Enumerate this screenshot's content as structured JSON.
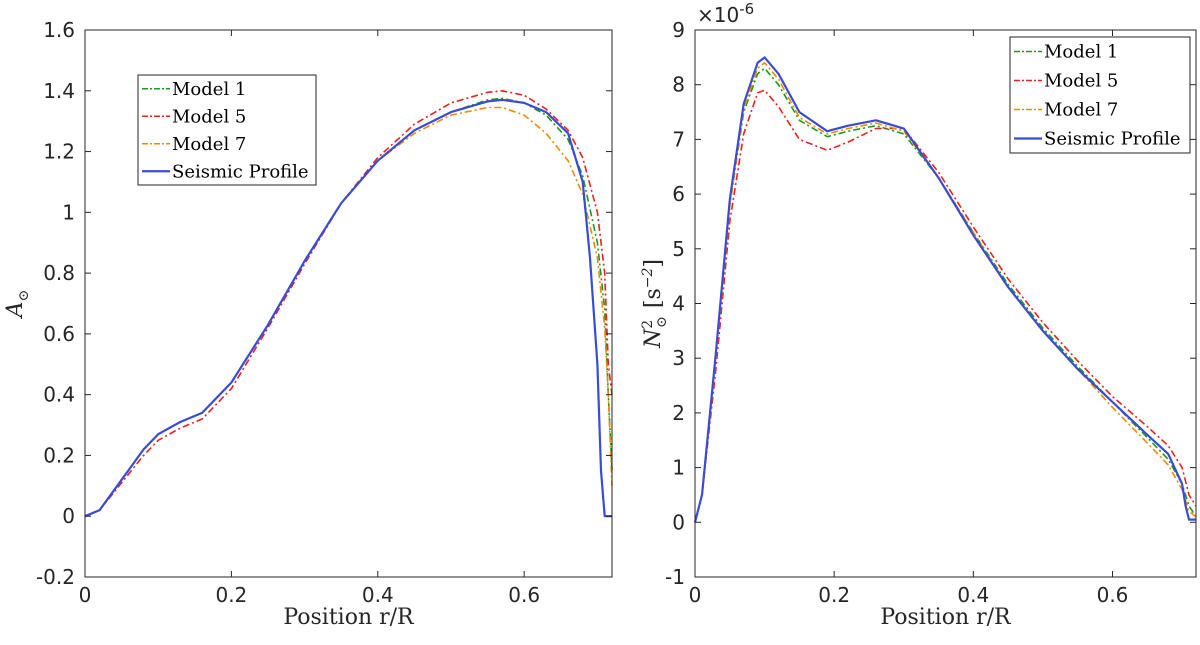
{
  "colors": {
    "model_1": "#1a9a1a",
    "model_5": "#e8231e",
    "model_7": "#f28a00",
    "seismic": "#3a4bd6",
    "axis": "#262626"
  },
  "chart_data": [
    {
      "type": "line",
      "xlabel": "Position r/R",
      "ylabel": "A",
      "ylabel_sub": "⊙",
      "xlim": [
        0,
        0.72
      ],
      "ylim": [
        -0.2,
        1.6
      ],
      "xticks": [
        0,
        0.2,
        0.4,
        0.6
      ],
      "xtick_labels": [
        "0",
        "0.2",
        "0.4",
        "0.6"
      ],
      "yticks": [
        -0.2,
        0,
        0.2,
        0.4,
        0.6,
        0.8,
        1,
        1.2,
        1.4,
        1.6
      ],
      "ytick_labels": [
        "-0.2",
        "0",
        "0.2",
        "0.4",
        "0.6",
        "0.8",
        "1",
        "1.2",
        "1.4",
        "1.6"
      ],
      "grid": false,
      "legend_position": "upper-left",
      "series": [
        {
          "name": "Model 1",
          "style": "dashdot",
          "x": [
            0,
            0.02,
            0.05,
            0.08,
            0.1,
            0.13,
            0.16,
            0.2,
            0.25,
            0.3,
            0.35,
            0.4,
            0.45,
            0.5,
            0.55,
            0.57,
            0.6,
            0.63,
            0.66,
            0.68,
            0.7,
            0.71,
            0.715,
            0.72
          ],
          "y": [
            0,
            0.02,
            0.12,
            0.22,
            0.27,
            0.31,
            0.34,
            0.44,
            0.63,
            0.84,
            1.03,
            1.17,
            1.27,
            1.33,
            1.37,
            1.375,
            1.36,
            1.32,
            1.24,
            1.12,
            0.9,
            0.68,
            0.4,
            0.15
          ]
        },
        {
          "name": "Model 5",
          "style": "dashdot",
          "x": [
            0,
            0.02,
            0.05,
            0.08,
            0.1,
            0.13,
            0.16,
            0.2,
            0.25,
            0.3,
            0.35,
            0.4,
            0.45,
            0.5,
            0.55,
            0.57,
            0.6,
            0.63,
            0.66,
            0.68,
            0.7,
            0.71,
            0.715,
            0.72
          ],
          "y": [
            0,
            0.02,
            0.11,
            0.2,
            0.25,
            0.29,
            0.32,
            0.42,
            0.62,
            0.83,
            1.03,
            1.18,
            1.29,
            1.36,
            1.395,
            1.4,
            1.385,
            1.34,
            1.27,
            1.18,
            1.0,
            0.8,
            0.5,
            0.4
          ]
        },
        {
          "name": "Model 7",
          "style": "dashdot",
          "x": [
            0,
            0.02,
            0.05,
            0.08,
            0.1,
            0.13,
            0.16,
            0.2,
            0.25,
            0.3,
            0.35,
            0.4,
            0.45,
            0.5,
            0.55,
            0.57,
            0.6,
            0.63,
            0.66,
            0.68,
            0.7,
            0.71,
            0.715,
            0.72
          ],
          "y": [
            0,
            0.02,
            0.12,
            0.22,
            0.27,
            0.31,
            0.34,
            0.44,
            0.63,
            0.84,
            1.03,
            1.17,
            1.26,
            1.32,
            1.345,
            1.345,
            1.32,
            1.26,
            1.17,
            1.06,
            0.85,
            0.62,
            0.4,
            0.1
          ]
        },
        {
          "name": "Seismic Profile",
          "style": "solid",
          "x": [
            0,
            0.02,
            0.05,
            0.08,
            0.1,
            0.13,
            0.16,
            0.2,
            0.25,
            0.3,
            0.35,
            0.4,
            0.45,
            0.5,
            0.55,
            0.57,
            0.6,
            0.63,
            0.66,
            0.68,
            0.69,
            0.7,
            0.705,
            0.71,
            0.715,
            0.72
          ],
          "y": [
            0,
            0.02,
            0.12,
            0.22,
            0.27,
            0.31,
            0.34,
            0.44,
            0.63,
            0.84,
            1.03,
            1.17,
            1.27,
            1.33,
            1.365,
            1.37,
            1.36,
            1.33,
            1.26,
            1.1,
            0.85,
            0.5,
            0.15,
            0.0,
            0.0,
            0.0
          ]
        }
      ]
    },
    {
      "type": "line",
      "xlabel": "Position r/R",
      "ylabel": "N",
      "ylabel_sub": "⊙",
      "ylabel_sup": "2",
      "ylabel_unit": "[s",
      "ylabel_unit_sup": "−2",
      "ylabel_unit_end": "]",
      "y_multiplier": "×10",
      "y_multiplier_exp": "-6",
      "xlim": [
        0,
        0.72
      ],
      "ylim": [
        -1,
        9
      ],
      "xticks": [
        0,
        0.2,
        0.4,
        0.6
      ],
      "xtick_labels": [
        "0",
        "0.2",
        "0.4",
        "0.6"
      ],
      "yticks": [
        -1,
        0,
        1,
        2,
        3,
        4,
        5,
        6,
        7,
        8,
        9
      ],
      "ytick_labels": [
        "-1",
        "0",
        "1",
        "2",
        "3",
        "4",
        "5",
        "6",
        "7",
        "8",
        "9"
      ],
      "grid": false,
      "legend_position": "top-right",
      "series": [
        {
          "name": "Model 1",
          "style": "dashdot",
          "x": [
            0,
            0.01,
            0.03,
            0.05,
            0.07,
            0.09,
            0.1,
            0.12,
            0.15,
            0.19,
            0.22,
            0.26,
            0.3,
            0.35,
            0.4,
            0.45,
            0.5,
            0.55,
            0.6,
            0.65,
            0.68,
            0.7,
            0.71,
            0.72
          ],
          "y": [
            0,
            0.5,
            3.0,
            5.8,
            7.5,
            8.2,
            8.3,
            8.0,
            7.35,
            7.05,
            7.15,
            7.25,
            7.1,
            6.3,
            5.3,
            4.35,
            3.55,
            2.85,
            2.2,
            1.55,
            1.15,
            0.7,
            0.3,
            0.1
          ]
        },
        {
          "name": "Model 5",
          "style": "dashdot",
          "x": [
            0,
            0.01,
            0.03,
            0.05,
            0.07,
            0.09,
            0.1,
            0.12,
            0.15,
            0.19,
            0.22,
            0.26,
            0.3,
            0.35,
            0.4,
            0.45,
            0.5,
            0.55,
            0.6,
            0.65,
            0.68,
            0.7,
            0.71,
            0.72
          ],
          "y": [
            0,
            0.5,
            2.8,
            5.5,
            7.1,
            7.85,
            7.9,
            7.6,
            7.0,
            6.8,
            6.95,
            7.2,
            7.2,
            6.4,
            5.4,
            4.45,
            3.65,
            2.95,
            2.3,
            1.75,
            1.4,
            1.0,
            0.5,
            0.3
          ]
        },
        {
          "name": "Model 7",
          "style": "dashdot",
          "x": [
            0,
            0.01,
            0.03,
            0.05,
            0.07,
            0.09,
            0.1,
            0.12,
            0.15,
            0.19,
            0.22,
            0.26,
            0.3,
            0.35,
            0.4,
            0.45,
            0.5,
            0.55,
            0.6,
            0.65,
            0.68,
            0.7,
            0.71,
            0.72
          ],
          "y": [
            0,
            0.5,
            3.0,
            5.8,
            7.55,
            8.3,
            8.4,
            8.1,
            7.4,
            7.1,
            7.2,
            7.3,
            7.15,
            6.3,
            5.3,
            4.3,
            3.5,
            2.8,
            2.1,
            1.45,
            1.05,
            0.6,
            0.2,
            0.1
          ]
        },
        {
          "name": "Seismic Profile",
          "style": "solid",
          "x": [
            0,
            0.01,
            0.03,
            0.05,
            0.07,
            0.09,
            0.1,
            0.12,
            0.15,
            0.19,
            0.22,
            0.26,
            0.3,
            0.35,
            0.4,
            0.45,
            0.5,
            0.55,
            0.6,
            0.65,
            0.68,
            0.7,
            0.705,
            0.71,
            0.72
          ],
          "y": [
            0,
            0.5,
            3.1,
            5.9,
            7.65,
            8.4,
            8.5,
            8.2,
            7.5,
            7.15,
            7.25,
            7.35,
            7.2,
            6.3,
            5.25,
            4.3,
            3.5,
            2.8,
            2.2,
            1.6,
            1.25,
            0.7,
            0.3,
            0.05,
            0.05
          ]
        }
      ]
    }
  ]
}
